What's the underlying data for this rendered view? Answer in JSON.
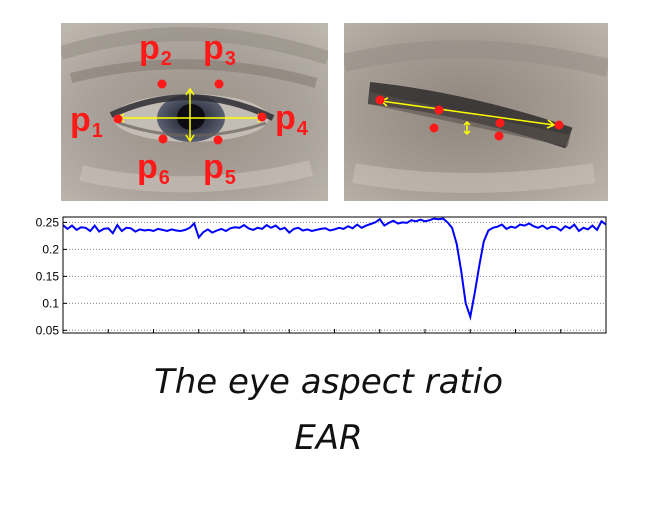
{
  "landmarks": {
    "p1": {
      "letter": "p",
      "num": "1"
    },
    "p2": {
      "letter": "p",
      "num": "2"
    },
    "p3": {
      "letter": "p",
      "num": "3"
    },
    "p4": {
      "letter": "p",
      "num": "4"
    },
    "p5": {
      "letter": "p",
      "num": "5"
    },
    "p6": {
      "letter": "p",
      "num": "6"
    }
  },
  "colors": {
    "landmark": "#ff1a1a",
    "arrow": "#ffff00",
    "line": "#0000ff"
  },
  "caption": {
    "line1": "The eye aspect ratio",
    "line2": "EAR"
  },
  "chart_data": {
    "type": "line",
    "title": "",
    "xlabel": "",
    "ylabel": "",
    "ylim": [
      0.045,
      0.26
    ],
    "yticks": [
      "0.25",
      "0.2",
      "0.15",
      "0.1",
      "0.05"
    ],
    "ytick_values": [
      0.25,
      0.2,
      0.15,
      0.1,
      0.05
    ],
    "grid": "horizontal-dotted",
    "series": [
      {
        "values": [
          0.245,
          0.238,
          0.244,
          0.236,
          0.241,
          0.24,
          0.234,
          0.244,
          0.233,
          0.238,
          0.239,
          0.23,
          0.245,
          0.234,
          0.24,
          0.239,
          0.233,
          0.237,
          0.235,
          0.236,
          0.234,
          0.238,
          0.236,
          0.234,
          0.237,
          0.235,
          0.234,
          0.236,
          0.24,
          0.248,
          0.222,
          0.232,
          0.237,
          0.231,
          0.235,
          0.238,
          0.234,
          0.239,
          0.241,
          0.24,
          0.245,
          0.239,
          0.236,
          0.24,
          0.238,
          0.245,
          0.24,
          0.244,
          0.237,
          0.24,
          0.231,
          0.238,
          0.24,
          0.235,
          0.237,
          0.234,
          0.236,
          0.238,
          0.239,
          0.235,
          0.237,
          0.24,
          0.238,
          0.243,
          0.239,
          0.246,
          0.24,
          0.244,
          0.247,
          0.25,
          0.256,
          0.244,
          0.249,
          0.253,
          0.248,
          0.25,
          0.249,
          0.254,
          0.252,
          0.255,
          0.252,
          0.254,
          0.257,
          0.256,
          0.257,
          0.25,
          0.24,
          0.21,
          0.16,
          0.1,
          0.075,
          0.12,
          0.17,
          0.215,
          0.235,
          0.24,
          0.242,
          0.246,
          0.238,
          0.242,
          0.24,
          0.246,
          0.244,
          0.248,
          0.243,
          0.24,
          0.244,
          0.238,
          0.242,
          0.241,
          0.235,
          0.243,
          0.239,
          0.246,
          0.234,
          0.24,
          0.237,
          0.244,
          0.236,
          0.252,
          0.246
        ]
      }
    ]
  }
}
